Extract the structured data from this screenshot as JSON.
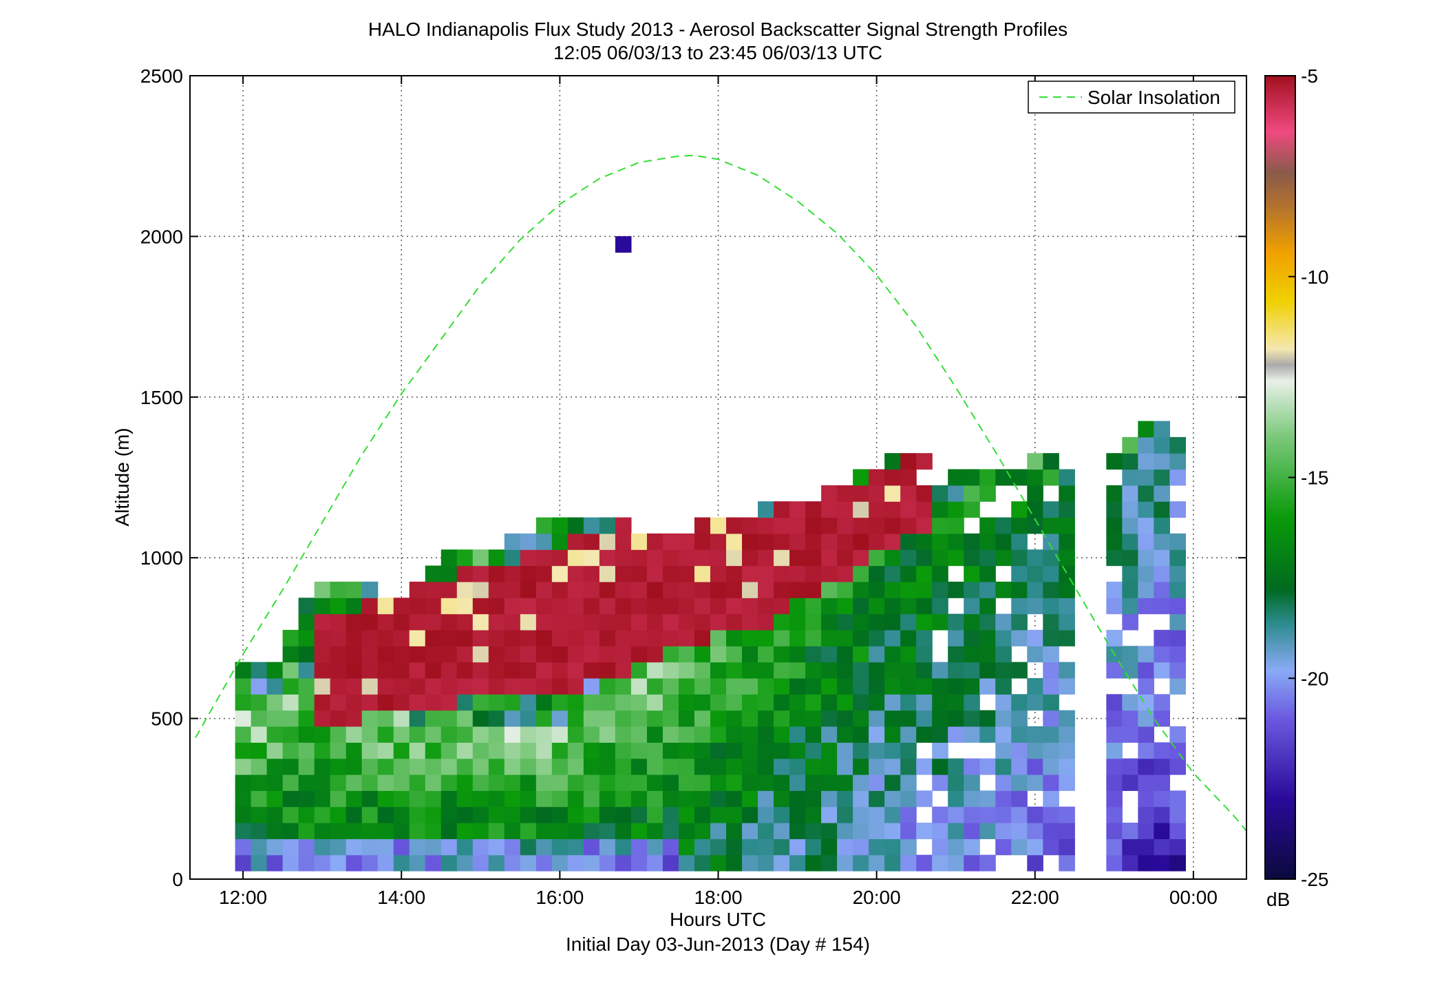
{
  "header": {
    "title": "HALO Indianapolis Flux Study 2013 - Aerosol Backscatter Signal Strength Profiles",
    "subtitle": "12:05 06/03/13 to 23:45 06/03/13  UTC"
  },
  "axes": {
    "xlabel": "Hours UTC",
    "xlabel2": "Initial Day 03-Jun-2013 (Day # 154)",
    "ylabel": "Altitude (m)"
  },
  "colorbar": {
    "label": "dB",
    "ticks": [
      "-5",
      "-10",
      "-15",
      "-20",
      "-25"
    ],
    "range": [
      -25,
      -5
    ]
  },
  "legend": {
    "entry": "Solar Insolation",
    "color": "#33dd33",
    "position": "top-right"
  },
  "chart_data": {
    "type": "heatmap",
    "title": "HALO Indianapolis Flux Study 2013 - Aerosol Backscatter Signal Strength Profiles",
    "subtitle": "12:05 06/03/13 to 23:45 06/03/13  UTC",
    "xlabel": "Hours UTC",
    "ylabel": "Altitude (m)",
    "colorbar_label": "dB",
    "x_ticks": [
      "12:00",
      "14:00",
      "16:00",
      "18:00",
      "20:00",
      "22:00",
      "00:00"
    ],
    "x_tick_hours": [
      12,
      14,
      16,
      18,
      20,
      22,
      24
    ],
    "xlim_hours": [
      11.33,
      24.67
    ],
    "y_ticks": [
      "0",
      "500",
      "1000",
      "1500",
      "2000",
      "2500"
    ],
    "ylim": [
      0,
      2500
    ],
    "clim": [
      -25,
      -5
    ],
    "grid": true,
    "time_step_hours": 0.2,
    "altitude_step_m": 50,
    "profile_tops_m": [
      [
        12.0,
        650
      ],
      [
        12.4,
        700
      ],
      [
        12.8,
        900
      ],
      [
        13.2,
        900
      ],
      [
        13.6,
        900
      ],
      [
        14.0,
        850
      ],
      [
        14.4,
        1000
      ],
      [
        14.8,
        1000
      ],
      [
        15.2,
        1050
      ],
      [
        15.6,
        1100
      ],
      [
        16.0,
        1150
      ],
      [
        16.4,
        1100
      ],
      [
        16.8,
        1100
      ],
      [
        17.2,
        1050
      ],
      [
        17.6,
        1100
      ],
      [
        18.0,
        1100
      ],
      [
        18.4,
        1150
      ],
      [
        18.8,
        1150
      ],
      [
        19.2,
        1200
      ],
      [
        19.6,
        1250
      ],
      [
        20.0,
        1300
      ],
      [
        20.4,
        1350
      ],
      [
        20.8,
        1250
      ],
      [
        21.2,
        1250
      ],
      [
        21.6,
        1250
      ],
      [
        22.0,
        1350
      ],
      [
        22.4,
        1250
      ],
      [
        23.2,
        1400
      ],
      [
        23.6,
        1400
      ],
      [
        23.8,
        1350
      ]
    ],
    "boundary_layer_top_m": [
      [
        12.0,
        500
      ],
      [
        12.4,
        520
      ],
      [
        12.8,
        600
      ],
      [
        13.2,
        600
      ],
      [
        13.6,
        500
      ],
      [
        14.0,
        500
      ],
      [
        14.4,
        480
      ],
      [
        14.8,
        480
      ],
      [
        15.2,
        470
      ],
      [
        15.6,
        470
      ],
      [
        16.0,
        500
      ],
      [
        16.4,
        580
      ],
      [
        16.8,
        650
      ],
      [
        17.2,
        700
      ],
      [
        17.6,
        780
      ],
      [
        18.0,
        830
      ],
      [
        18.4,
        900
      ],
      [
        18.8,
        1000
      ],
      [
        19.2,
        1050
      ],
      [
        19.6,
        1100
      ],
      [
        20.0,
        1150
      ],
      [
        20.4,
        1200
      ],
      [
        20.8,
        1150
      ],
      [
        21.2,
        1150
      ],
      [
        21.6,
        1150
      ],
      [
        22.0,
        1250
      ],
      [
        22.4,
        1200
      ],
      [
        23.2,
        1350
      ],
      [
        23.6,
        1350
      ],
      [
        23.8,
        1350
      ]
    ],
    "elevated_layer": {
      "time_range_hours": [
        12.8,
        20.6
      ],
      "base_m": [
        500,
        500,
        520,
        550,
        560,
        580,
        640,
        700,
        760,
        800,
        900,
        1000,
        1100
      ],
      "top_m": [
        800,
        850,
        900,
        950,
        1000,
        1050,
        1100,
        1100,
        1100,
        1150,
        1200,
        1250,
        1350
      ],
      "value_db": -5
    },
    "isolated_cells": [
      {
        "time_hours": 16.8,
        "altitude_m": 1975,
        "value_db": -23
      }
    ],
    "series": [
      {
        "name": "Solar Insolation",
        "style": "dashed",
        "color": "#33dd33",
        "x_hours": [
          11.4,
          12.0,
          12.5,
          13.0,
          13.5,
          14.0,
          14.5,
          15.0,
          15.5,
          16.0,
          16.5,
          17.0,
          17.5,
          17.7,
          18.0,
          18.5,
          19.0,
          19.5,
          20.0,
          20.5,
          21.0,
          21.5,
          22.0,
          22.5,
          23.0,
          23.5,
          24.0,
          24.5,
          24.67
        ],
        "y_m": [
          440,
          700,
          900,
          1110,
          1320,
          1510,
          1680,
          1850,
          1990,
          2100,
          2180,
          2230,
          2250,
          2252,
          2240,
          2190,
          2110,
          2010,
          1880,
          1720,
          1530,
          1330,
          1120,
          910,
          700,
          500,
          330,
          200,
          150
        ]
      }
    ]
  }
}
